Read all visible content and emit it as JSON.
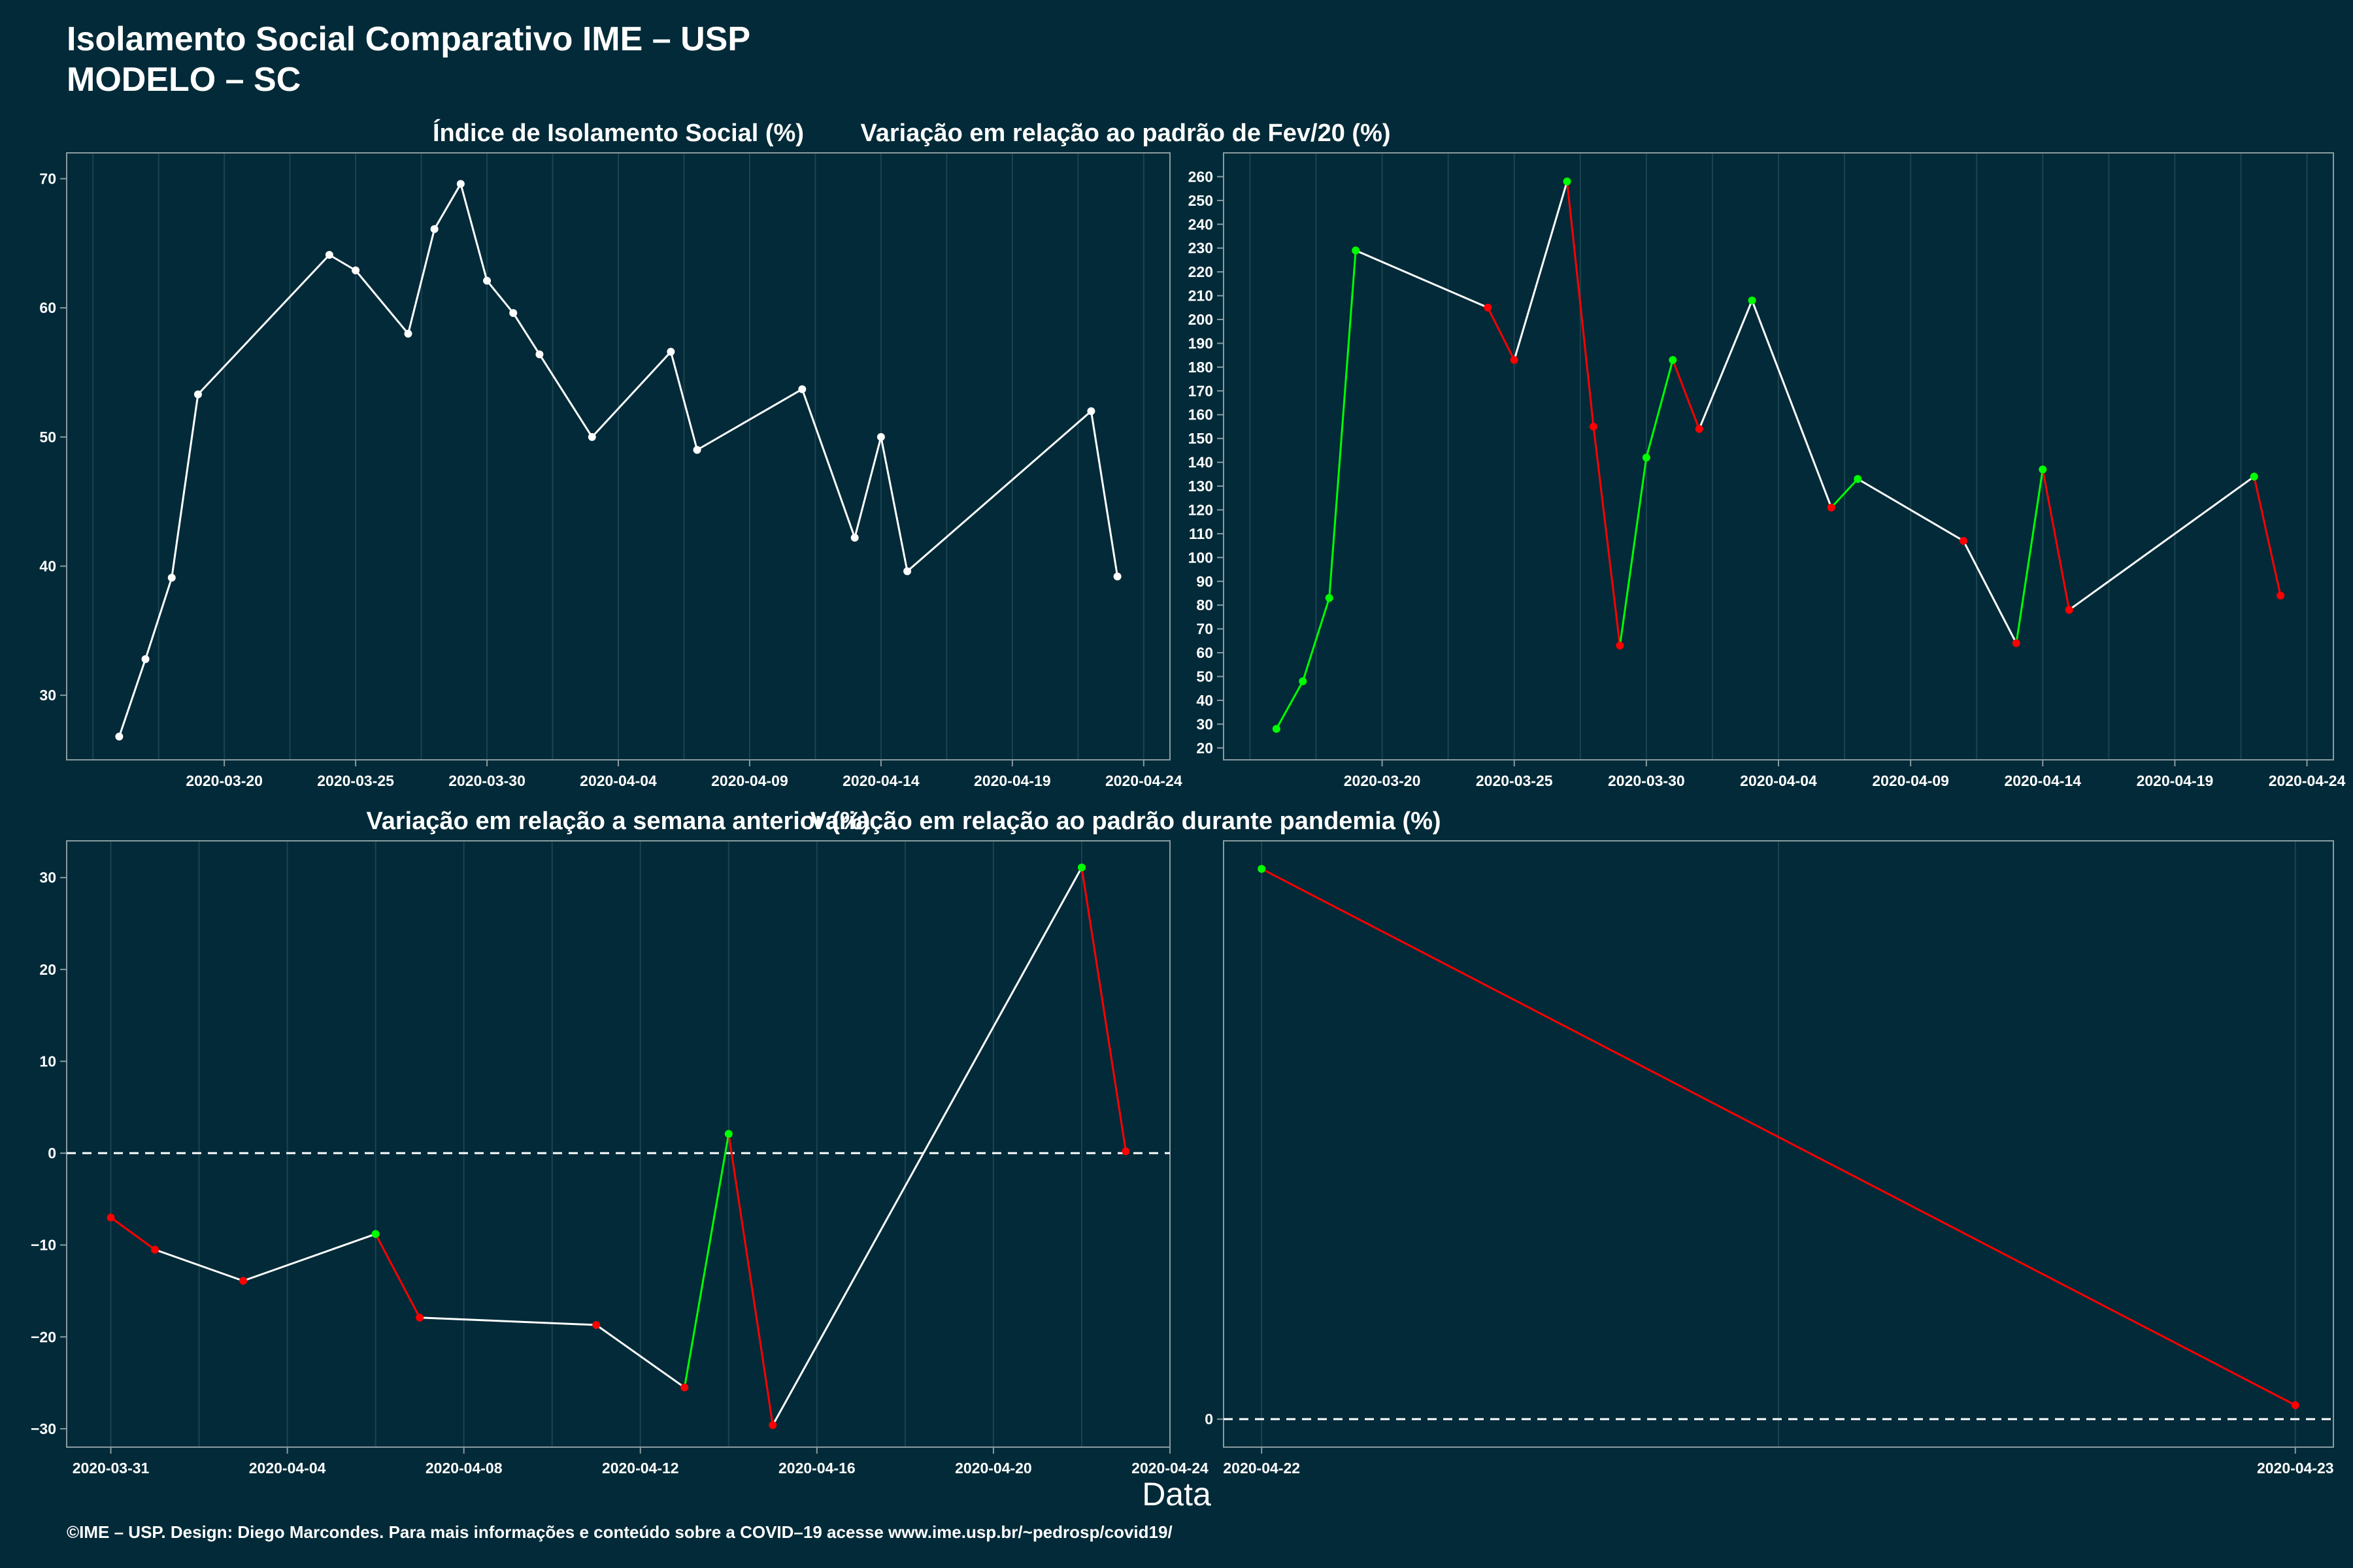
{
  "header": {
    "line1": "Isolamento Social Comparativo IME – USP",
    "line2": "MODELO – SC"
  },
  "x_axis_label": "Data",
  "footer": "©IME – USP. Design: Diego Marcondes. Para mais informações e conteúdo sobre a COVID–19 acesse www.ime.usp.br/~pedrosp/covid19/",
  "colors": {
    "background": "#022a38",
    "line_neutral": "#ffffff",
    "positive": "#00ff00",
    "negative": "#ff0000"
  },
  "chart_data": [
    {
      "type": "line",
      "title": "Índice de Isolamento Social (%)",
      "xlabel": "",
      "ylabel": "",
      "ylim": [
        25,
        72
      ],
      "xlim": [
        "2020-03-14",
        "2020-04-25"
      ],
      "x_ticks": [
        "2020-03-20",
        "2020-03-25",
        "2020-03-30",
        "2020-04-04",
        "2020-04-09",
        "2020-04-14",
        "2020-04-19",
        "2020-04-24"
      ],
      "y_ticks": [
        30,
        40,
        50,
        60,
        70
      ],
      "grid": true,
      "color_mode": "white",
      "points": [
        {
          "x": "2020-03-16",
          "y": 26.8
        },
        {
          "x": "2020-03-17",
          "y": 32.8
        },
        {
          "x": "2020-03-18",
          "y": 39.1
        },
        {
          "x": "2020-03-19",
          "y": 53.3
        },
        {
          "x": "2020-03-24",
          "y": 64.1
        },
        {
          "x": "2020-03-25",
          "y": 62.9
        },
        {
          "x": "2020-03-27",
          "y": 58.0
        },
        {
          "x": "2020-03-28",
          "y": 66.1
        },
        {
          "x": "2020-03-29",
          "y": 69.6
        },
        {
          "x": "2020-03-30",
          "y": 62.1
        },
        {
          "x": "2020-03-31",
          "y": 59.6
        },
        {
          "x": "2020-04-01",
          "y": 56.4
        },
        {
          "x": "2020-04-03",
          "y": 50.0
        },
        {
          "x": "2020-04-06",
          "y": 56.6
        },
        {
          "x": "2020-04-07",
          "y": 49.0
        },
        {
          "x": "2020-04-11",
          "y": 53.7
        },
        {
          "x": "2020-04-13",
          "y": 42.2
        },
        {
          "x": "2020-04-14",
          "y": 50.0
        },
        {
          "x": "2020-04-15",
          "y": 39.6
        },
        {
          "x": "2020-04-22",
          "y": 52.0
        },
        {
          "x": "2020-04-23",
          "y": 39.2
        }
      ]
    },
    {
      "type": "line",
      "title": "Variação em relação ao padrão de Fev/20 (%)",
      "xlabel": "",
      "ylabel": "",
      "ylim": [
        15,
        270
      ],
      "xlim": [
        "2020-03-14",
        "2020-04-25"
      ],
      "x_ticks": [
        "2020-03-20",
        "2020-03-25",
        "2020-03-30",
        "2020-04-04",
        "2020-04-09",
        "2020-04-14",
        "2020-04-19",
        "2020-04-24"
      ],
      "y_ticks": [
        20,
        30,
        40,
        50,
        60,
        70,
        80,
        90,
        100,
        110,
        120,
        130,
        140,
        150,
        160,
        170,
        180,
        190,
        200,
        210,
        220,
        230,
        240,
        250,
        260
      ],
      "grid": true,
      "color_mode": "sign",
      "points": [
        {
          "x": "2020-03-16",
          "y": 28
        },
        {
          "x": "2020-03-17",
          "y": 48
        },
        {
          "x": "2020-03-18",
          "y": 83
        },
        {
          "x": "2020-03-19",
          "y": 229
        },
        {
          "x": "2020-03-24",
          "y": 205
        },
        {
          "x": "2020-03-25",
          "y": 183
        },
        {
          "x": "2020-03-27",
          "y": 258
        },
        {
          "x": "2020-03-28",
          "y": 155
        },
        {
          "x": "2020-03-29",
          "y": 63
        },
        {
          "x": "2020-03-30",
          "y": 142
        },
        {
          "x": "2020-03-31",
          "y": 183
        },
        {
          "x": "2020-04-01",
          "y": 154
        },
        {
          "x": "2020-04-03",
          "y": 208
        },
        {
          "x": "2020-04-06",
          "y": 121
        },
        {
          "x": "2020-04-07",
          "y": 133
        },
        {
          "x": "2020-04-11",
          "y": 107
        },
        {
          "x": "2020-04-13",
          "y": 64
        },
        {
          "x": "2020-04-14",
          "y": 137
        },
        {
          "x": "2020-04-15",
          "y": 78
        },
        {
          "x": "2020-04-22",
          "y": 134
        },
        {
          "x": "2020-04-23",
          "y": 84
        }
      ]
    },
    {
      "type": "line",
      "title": "Variação em relação a semana anterior (%)",
      "xlabel": "",
      "ylabel": "",
      "ylim": [
        -32,
        34
      ],
      "xlim": [
        "2020-03-30",
        "2020-04-24"
      ],
      "x_ticks": [
        "2020-03-31",
        "2020-04-04",
        "2020-04-08",
        "2020-04-12",
        "2020-04-16",
        "2020-04-20",
        "2020-04-24"
      ],
      "y_ticks": [
        -30,
        -20,
        -10,
        0,
        10,
        20,
        30
      ],
      "grid": true,
      "zero_line": true,
      "color_mode": "sign",
      "points": [
        {
          "x": "2020-03-31",
          "y": -7.0
        },
        {
          "x": "2020-04-01",
          "y": -10.5
        },
        {
          "x": "2020-04-03",
          "y": -13.9
        },
        {
          "x": "2020-04-06",
          "y": -8.8
        },
        {
          "x": "2020-04-07",
          "y": -17.9
        },
        {
          "x": "2020-04-11",
          "y": -18.7
        },
        {
          "x": "2020-04-13",
          "y": -25.5
        },
        {
          "x": "2020-04-14",
          "y": 2.1
        },
        {
          "x": "2020-04-15",
          "y": -29.6
        },
        {
          "x": "2020-04-22",
          "y": 31.1
        },
        {
          "x": "2020-04-23",
          "y": 0.2
        }
      ]
    },
    {
      "type": "line",
      "title": "Variação em relação ao padrão durante pandemia (%)",
      "xlabel": "",
      "ylabel": "",
      "ylim": [
        -3,
        62
      ],
      "xlim": [
        "2020-04-21 23:07",
        "2020-04-23 00:53"
      ],
      "x_ticks": [
        "2020-04-22",
        "2020-04-23"
      ],
      "y_ticks": [
        0
      ],
      "grid": true,
      "zero_line": true,
      "color_mode": "sign",
      "points": [
        {
          "x": "2020-04-22",
          "y": 59.0
        },
        {
          "x": "2020-04-23",
          "y": 1.5
        }
      ]
    }
  ]
}
